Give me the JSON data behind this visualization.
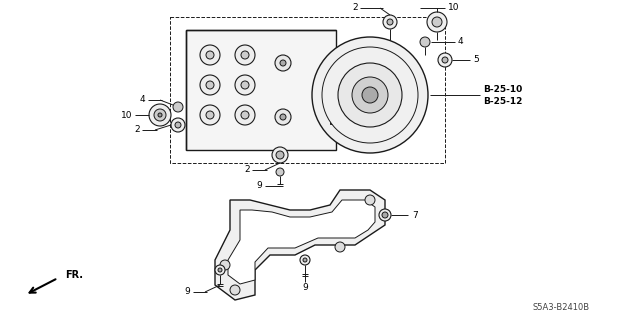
{
  "bg_color": "#ffffff",
  "line_color": "#1a1a1a",
  "part_numbers": {
    "B_25_10": "B-25-10",
    "B_25_12": "B-25-12"
  },
  "diagram_code": "S5A3-B2410B",
  "fr_label": "FR.",
  "labels": {
    "2a": "2",
    "2b": "2",
    "2c": "2",
    "4a": "4",
    "4b": "4",
    "5": "5",
    "7": "7",
    "9a": "9",
    "9b": "9",
    "9c": "9",
    "10a": "10",
    "10b": "10"
  }
}
